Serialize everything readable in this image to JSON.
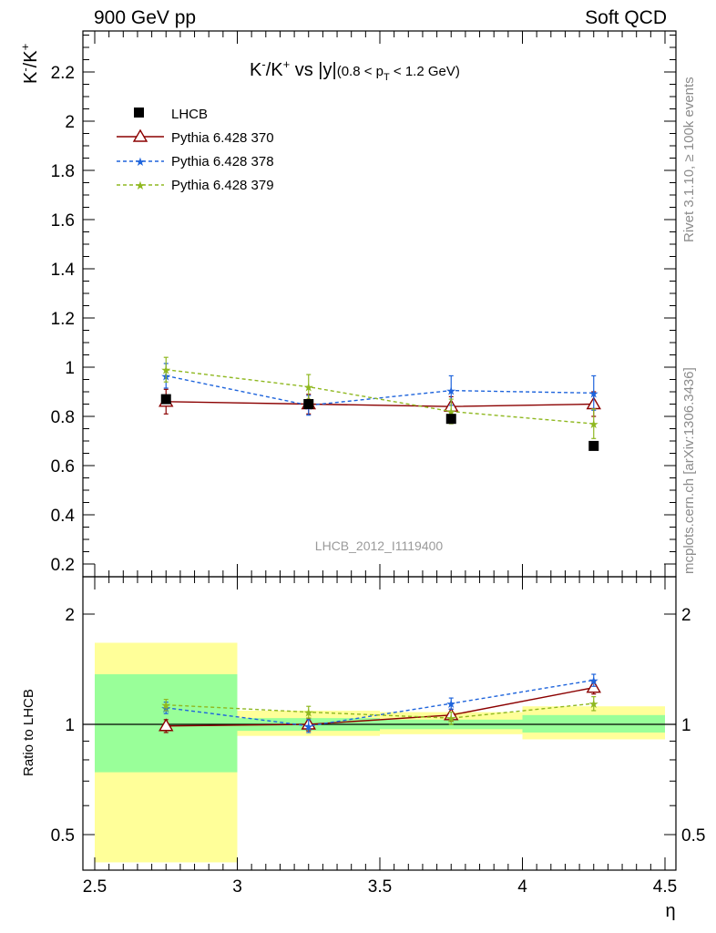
{
  "header": {
    "left": "900 GeV pp",
    "right": "Soft QCD"
  },
  "side": {
    "rivet": "Rivet 3.1.10, ≥ 100k events",
    "mcplots": "mcplots.cern.ch [arXiv:1306.3436]"
  },
  "colors": {
    "lhcb": "#000000",
    "p370": "#8b0000",
    "p378": "#1e64dc",
    "p379": "#8fb820",
    "band_yellow": "#ffff99",
    "band_green": "#99ff99",
    "watermark": "#9a9a9a"
  },
  "chart_data": [
    {
      "type": "scatter",
      "title": "K⁻/K⁺ vs |y| (0.8 < p_T < 1.2 GeV)",
      "title_main": "K",
      "title_sup1": "-",
      "title_mid": "/K",
      "title_sup2": "+",
      "title_vs": " vs |y|",
      "title_range_a": "(0.8 < p",
      "title_range_sub": "T",
      "title_range_b": " < 1.2 GeV)",
      "ylabel": "K⁻/K⁺",
      "ylabel_base1": "K",
      "ylabel_sup1": "-",
      "ylabel_base2": "/K",
      "ylabel_sup2": "+",
      "watermark": "LHCB_2012_I1119400",
      "xlim": [
        2.5,
        4.5
      ],
      "ylim": [
        0.17,
        2.35
      ],
      "yticks": [
        "0.2",
        "0.4",
        "0.6",
        "0.8",
        "1",
        "1.2",
        "1.4",
        "1.6",
        "1.8",
        "2",
        "2.2"
      ],
      "legend_position": "top-left",
      "series": [
        {
          "name": "LHCB",
          "marker": "square",
          "x": [
            2.75,
            3.25,
            3.75,
            4.25
          ],
          "values": [
            0.87,
            0.85,
            0.79,
            0.68
          ],
          "err": [
            0.01,
            0.01,
            0.01,
            0.01
          ]
        },
        {
          "name": "Pythia 6.428 370",
          "marker": "triangle",
          "line": "solid",
          "x": [
            2.75,
            3.25,
            3.75,
            4.25
          ],
          "values": [
            0.86,
            0.85,
            0.84,
            0.85
          ],
          "err": [
            0.05,
            0.04,
            0.04,
            0.05
          ]
        },
        {
          "name": "Pythia 6.428 378",
          "marker": "star",
          "line": "dashed",
          "x": [
            2.75,
            3.25,
            3.75,
            4.25
          ],
          "values": [
            0.965,
            0.845,
            0.905,
            0.895
          ],
          "err": [
            0.05,
            0.04,
            0.06,
            0.07
          ]
        },
        {
          "name": "Pythia 6.428 379",
          "marker": "star",
          "line": "dashed",
          "x": [
            2.75,
            3.25,
            3.75,
            4.25
          ],
          "values": [
            0.99,
            0.92,
            0.82,
            0.77
          ],
          "err": [
            0.05,
            0.05,
            0.05,
            0.06
          ]
        }
      ]
    },
    {
      "type": "scatter",
      "title": "",
      "ylabel": "Ratio to LHCB",
      "xlabel": "η",
      "xlim": [
        2.5,
        4.5
      ],
      "ylim": [
        0.42,
        2.35
      ],
      "yscale": "log",
      "yticks": [
        "0.5",
        "1",
        "2"
      ],
      "xticks": [
        "2.5",
        "3",
        "3.5",
        "4",
        "4.5"
      ],
      "bands": [
        {
          "x0": 2.5,
          "x1": 3.0,
          "yellow": [
            0.42,
            1.67
          ],
          "green": [
            0.74,
            1.37
          ]
        },
        {
          "x0": 3.0,
          "x1": 3.5,
          "yellow": [
            0.93,
            1.09
          ],
          "green": [
            0.96,
            1.04
          ]
        },
        {
          "x0": 3.5,
          "x1": 4.0,
          "yellow": [
            0.94,
            1.08
          ],
          "green": [
            0.97,
            1.03
          ]
        },
        {
          "x0": 4.0,
          "x1": 4.5,
          "yellow": [
            0.91,
            1.12
          ],
          "green": [
            0.95,
            1.06
          ]
        }
      ],
      "series": [
        {
          "name": "Pythia 6.428 370",
          "x": [
            2.75,
            3.25,
            3.75,
            4.25
          ],
          "values": [
            0.99,
            1.0,
            1.06,
            1.26
          ],
          "err": [
            0.04,
            0.04,
            0.04,
            0.05
          ]
        },
        {
          "name": "Pythia 6.428 378",
          "x": [
            2.75,
            3.25,
            3.75,
            4.25
          ],
          "values": [
            1.11,
            0.99,
            1.14,
            1.32
          ],
          "err": [
            0.04,
            0.04,
            0.04,
            0.05
          ]
        },
        {
          "name": "Pythia 6.428 379",
          "x": [
            2.75,
            3.25,
            3.75,
            4.25
          ],
          "values": [
            1.13,
            1.08,
            1.04,
            1.14
          ],
          "err": [
            0.04,
            0.04,
            0.04,
            0.05
          ]
        }
      ]
    }
  ]
}
